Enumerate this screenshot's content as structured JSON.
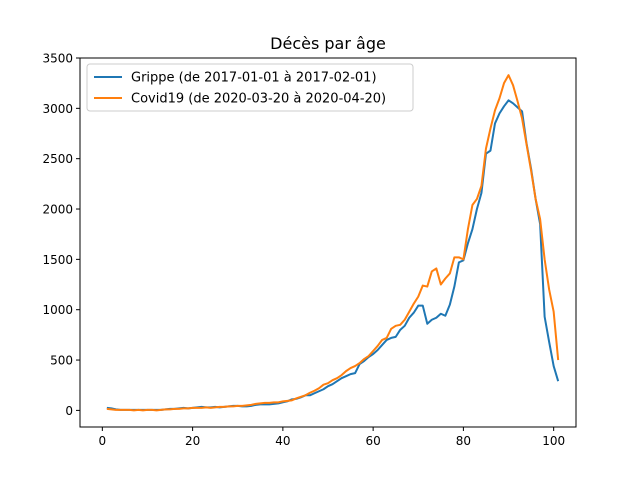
{
  "chart_data": {
    "type": "line",
    "title": "Décès par âge",
    "xlabel": "",
    "ylabel": "",
    "xlim": [
      -4.95,
      104.95
    ],
    "ylim": [
      -165,
      3500
    ],
    "xticks": [
      0,
      20,
      40,
      60,
      80,
      100
    ],
    "yticks": [
      0,
      500,
      1000,
      1500,
      2000,
      2500,
      3000,
      3500
    ],
    "legend_position": "top-left",
    "grid": false,
    "series": [
      {
        "name": "Grippe (de 2017-01-01 à 2017-02-01)",
        "color": "#1f77b4",
        "points": [
          [
            1,
            25
          ],
          [
            2,
            20
          ],
          [
            3,
            10
          ],
          [
            4,
            5
          ],
          [
            5,
            5
          ],
          [
            6,
            5
          ],
          [
            7,
            5
          ],
          [
            8,
            5
          ],
          [
            9,
            5
          ],
          [
            10,
            5
          ],
          [
            11,
            5
          ],
          [
            12,
            5
          ],
          [
            13,
            5
          ],
          [
            14,
            10
          ],
          [
            15,
            15
          ],
          [
            16,
            15
          ],
          [
            17,
            20
          ],
          [
            18,
            25
          ],
          [
            19,
            20
          ],
          [
            20,
            25
          ],
          [
            21,
            30
          ],
          [
            22,
            35
          ],
          [
            23,
            30
          ],
          [
            24,
            30
          ],
          [
            25,
            35
          ],
          [
            26,
            30
          ],
          [
            27,
            35
          ],
          [
            28,
            40
          ],
          [
            29,
            45
          ],
          [
            30,
            45
          ],
          [
            31,
            40
          ],
          [
            32,
            40
          ],
          [
            33,
            45
          ],
          [
            34,
            55
          ],
          [
            35,
            60
          ],
          [
            36,
            60
          ],
          [
            37,
            60
          ],
          [
            38,
            65
          ],
          [
            39,
            70
          ],
          [
            40,
            80
          ],
          [
            41,
            90
          ],
          [
            42,
            110
          ],
          [
            43,
            115
          ],
          [
            44,
            130
          ],
          [
            45,
            150
          ],
          [
            46,
            150
          ],
          [
            47,
            170
          ],
          [
            48,
            190
          ],
          [
            49,
            210
          ],
          [
            50,
            240
          ],
          [
            51,
            260
          ],
          [
            52,
            290
          ],
          [
            53,
            320
          ],
          [
            54,
            340
          ],
          [
            55,
            360
          ],
          [
            56,
            370
          ],
          [
            57,
            460
          ],
          [
            58,
            490
          ],
          [
            59,
            530
          ],
          [
            60,
            560
          ],
          [
            61,
            600
          ],
          [
            62,
            650
          ],
          [
            63,
            700
          ],
          [
            64,
            720
          ],
          [
            65,
            730
          ],
          [
            66,
            800
          ],
          [
            67,
            840
          ],
          [
            68,
            920
          ],
          [
            69,
            970
          ],
          [
            70,
            1040
          ],
          [
            71,
            1040
          ],
          [
            72,
            860
          ],
          [
            73,
            900
          ],
          [
            74,
            920
          ],
          [
            75,
            960
          ],
          [
            76,
            940
          ],
          [
            77,
            1050
          ],
          [
            78,
            1230
          ],
          [
            79,
            1470
          ],
          [
            80,
            1490
          ],
          [
            81,
            1660
          ],
          [
            82,
            1800
          ],
          [
            83,
            2000
          ],
          [
            84,
            2160
          ],
          [
            85,
            2550
          ],
          [
            86,
            2580
          ],
          [
            87,
            2850
          ],
          [
            88,
            2950
          ],
          [
            89,
            3020
          ],
          [
            90,
            3080
          ],
          [
            91,
            3050
          ],
          [
            92,
            3010
          ],
          [
            93,
            2970
          ],
          [
            94,
            2650
          ],
          [
            95,
            2400
          ],
          [
            96,
            2100
          ],
          [
            97,
            1850
          ],
          [
            98,
            930
          ],
          [
            99,
            680
          ],
          [
            100,
            440
          ],
          [
            101,
            290
          ]
        ]
      },
      {
        "name": "Covid19 (de 2020-03-20 à 2020-04-20)",
        "color": "#ff7f0e",
        "points": [
          [
            1,
            15
          ],
          [
            2,
            10
          ],
          [
            3,
            5
          ],
          [
            4,
            5
          ],
          [
            5,
            5
          ],
          [
            6,
            5
          ],
          [
            7,
            0
          ],
          [
            8,
            5
          ],
          [
            9,
            0
          ],
          [
            10,
            5
          ],
          [
            11,
            5
          ],
          [
            12,
            0
          ],
          [
            13,
            5
          ],
          [
            14,
            10
          ],
          [
            15,
            10
          ],
          [
            16,
            15
          ],
          [
            17,
            15
          ],
          [
            18,
            20
          ],
          [
            19,
            20
          ],
          [
            20,
            25
          ],
          [
            21,
            25
          ],
          [
            22,
            25
          ],
          [
            23,
            30
          ],
          [
            24,
            25
          ],
          [
            25,
            30
          ],
          [
            26,
            35
          ],
          [
            27,
            35
          ],
          [
            28,
            40
          ],
          [
            29,
            40
          ],
          [
            30,
            45
          ],
          [
            31,
            45
          ],
          [
            32,
            50
          ],
          [
            33,
            55
          ],
          [
            34,
            65
          ],
          [
            35,
            70
          ],
          [
            36,
            75
          ],
          [
            37,
            75
          ],
          [
            38,
            80
          ],
          [
            39,
            80
          ],
          [
            40,
            90
          ],
          [
            41,
            95
          ],
          [
            42,
            100
          ],
          [
            43,
            120
          ],
          [
            44,
            135
          ],
          [
            45,
            150
          ],
          [
            46,
            175
          ],
          [
            47,
            195
          ],
          [
            48,
            220
          ],
          [
            49,
            255
          ],
          [
            50,
            270
          ],
          [
            51,
            300
          ],
          [
            52,
            320
          ],
          [
            53,
            350
          ],
          [
            54,
            390
          ],
          [
            55,
            420
          ],
          [
            56,
            440
          ],
          [
            57,
            470
          ],
          [
            58,
            510
          ],
          [
            59,
            540
          ],
          [
            60,
            590
          ],
          [
            61,
            640
          ],
          [
            62,
            700
          ],
          [
            63,
            720
          ],
          [
            64,
            810
          ],
          [
            65,
            840
          ],
          [
            66,
            850
          ],
          [
            67,
            900
          ],
          [
            68,
            980
          ],
          [
            69,
            1060
          ],
          [
            70,
            1130
          ],
          [
            71,
            1240
          ],
          [
            72,
            1230
          ],
          [
            73,
            1380
          ],
          [
            74,
            1410
          ],
          [
            75,
            1250
          ],
          [
            76,
            1310
          ],
          [
            77,
            1360
          ],
          [
            78,
            1520
          ],
          [
            79,
            1520
          ],
          [
            80,
            1500
          ],
          [
            81,
            1800
          ],
          [
            82,
            2040
          ],
          [
            83,
            2100
          ],
          [
            84,
            2230
          ],
          [
            85,
            2600
          ],
          [
            86,
            2800
          ],
          [
            87,
            2980
          ],
          [
            88,
            3100
          ],
          [
            89,
            3250
          ],
          [
            90,
            3330
          ],
          [
            91,
            3230
          ],
          [
            92,
            3070
          ],
          [
            93,
            2900
          ],
          [
            94,
            2640
          ],
          [
            95,
            2380
          ],
          [
            96,
            2100
          ],
          [
            97,
            1900
          ],
          [
            98,
            1500
          ],
          [
            99,
            1200
          ],
          [
            100,
            980
          ],
          [
            101,
            500
          ]
        ]
      }
    ]
  }
}
